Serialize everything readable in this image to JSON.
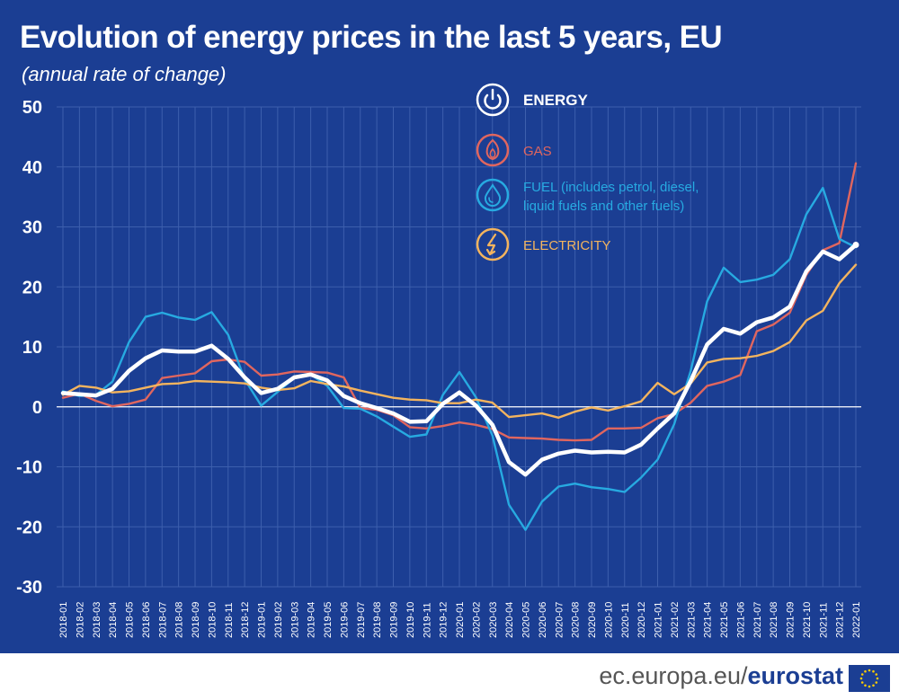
{
  "header": {
    "title": "Evolution of energy prices in the last 5 years, EU",
    "subtitle": "(annual rate of change)"
  },
  "footer": {
    "site_prefix": "ec.europa.eu/",
    "site_brand": "eurostat"
  },
  "colors": {
    "background": "#1b3e93",
    "energy": "#ffffff",
    "gas": "#e0665f",
    "fuel": "#27aae1",
    "electricity": "#f3b45e",
    "grid": "#3d5fad",
    "zero_line": "#ffffff"
  },
  "chart_data": {
    "type": "line",
    "title": "Evolution of energy prices in the last 5 years, EU",
    "subtitle": "(annual rate of change)",
    "xlabel": "",
    "ylabel": "",
    "ylim": [
      -30,
      50
    ],
    "yticks": [
      -30,
      -20,
      -10,
      0,
      10,
      20,
      30,
      40,
      50
    ],
    "grid": true,
    "legend_position": "top-right",
    "x": [
      "2018-01",
      "2018-02",
      "2018-03",
      "2018-04",
      "2018-05",
      "2018-06",
      "2018-07",
      "2018-08",
      "2018-09",
      "2018-10",
      "2018-11",
      "2018-12",
      "2019-01",
      "2019-02",
      "2019-03",
      "2019-04",
      "2019-05",
      "2019-06",
      "2019-07",
      "2019-08",
      "2019-09",
      "2019-10",
      "2019-11",
      "2019-12",
      "2020-01",
      "2020-02",
      "2020-03",
      "2020-04",
      "2020-05",
      "2020-06",
      "2020-07",
      "2020-08",
      "2020-09",
      "2020-10",
      "2020-11",
      "2020-12",
      "2021-01",
      "2021-02",
      "2021-03",
      "2021-04",
      "2021-05",
      "2021-06",
      "2021-07",
      "2021-08",
      "2021-09",
      "2021-10",
      "2021-11",
      "2021-12",
      "2022-01"
    ],
    "series": [
      {
        "name": "GAS",
        "color": "#e0665f",
        "icon": "gas-flame-icon",
        "values": [
          1.5,
          2.2,
          1.0,
          0.1,
          0.5,
          1.2,
          4.8,
          5.2,
          5.6,
          7.6,
          7.9,
          7.5,
          5.2,
          5.4,
          5.9,
          5.8,
          5.7,
          4.9,
          -0.2,
          -0.5,
          -1.4,
          -3.4,
          -3.6,
          -3.2,
          -2.6,
          -3.0,
          -3.7,
          -5.1,
          -5.2,
          -5.3,
          -5.5,
          -5.6,
          -5.5,
          -3.6,
          -3.6,
          -3.5,
          -1.9,
          -1.2,
          0.7,
          3.5,
          4.2,
          5.3,
          12.6,
          13.7,
          15.7,
          22.0,
          26.1,
          27.3,
          40.6
        ]
      },
      {
        "name": "FUEL (includes petrol, diesel, liquid fuels and other fuels)",
        "color": "#27aae1",
        "icon": "fuel-drop-icon",
        "values": [
          2.6,
          1.8,
          2.0,
          4.2,
          10.8,
          15.0,
          15.7,
          14.9,
          14.5,
          15.8,
          12.0,
          4.6,
          0.2,
          2.5,
          4.8,
          5.4,
          3.5,
          -0.2,
          -0.3,
          -1.6,
          -3.3,
          -5.0,
          -4.6,
          2.0,
          5.8,
          1.6,
          -4.8,
          -16.3,
          -20.5,
          -15.8,
          -13.3,
          -12.8,
          -13.4,
          -13.7,
          -14.2,
          -11.8,
          -8.8,
          -2.9,
          6.0,
          17.6,
          23.2,
          20.8,
          21.2,
          22.0,
          24.6,
          32.1,
          36.5,
          28.0,
          26.6
        ]
      },
      {
        "name": "ELECTRICITY",
        "color": "#f3b45e",
        "icon": "electricity-bolt-icon",
        "values": [
          2.0,
          3.5,
          3.2,
          2.4,
          2.6,
          3.2,
          3.8,
          3.9,
          4.3,
          4.2,
          4.1,
          3.9,
          3.2,
          2.8,
          3.1,
          4.3,
          3.8,
          3.4,
          2.7,
          2.1,
          1.5,
          1.2,
          1.1,
          0.6,
          0.6,
          1.2,
          0.7,
          -1.7,
          -1.4,
          -1.1,
          -1.8,
          -0.8,
          -0.1,
          -0.6,
          0.1,
          0.9,
          4.0,
          2.1,
          3.9,
          7.4,
          8.0,
          8.1,
          8.5,
          9.3,
          10.8,
          14.4,
          16.0,
          20.6,
          23.7
        ]
      },
      {
        "name": "ENERGY",
        "color": "#ffffff",
        "icon": "energy-power-icon",
        "values": [
          2.3,
          2.1,
          1.9,
          3.0,
          6.0,
          8.1,
          9.4,
          9.2,
          9.2,
          10.2,
          8.0,
          4.9,
          2.3,
          3.0,
          4.9,
          5.4,
          4.4,
          1.8,
          0.6,
          -0.2,
          -1.1,
          -2.5,
          -2.4,
          0.5,
          2.4,
          0.2,
          -3.0,
          -9.2,
          -11.3,
          -8.8,
          -7.8,
          -7.3,
          -7.6,
          -7.5,
          -7.6,
          -6.3,
          -3.6,
          -1.1,
          4.3,
          10.4,
          13.0,
          12.2,
          14.1,
          14.9,
          16.7,
          22.6,
          25.9,
          24.6,
          27.0
        ]
      }
    ],
    "legend": [
      {
        "label": "ENERGY",
        "color": "#ffffff",
        "icon": "energy-power-icon"
      },
      {
        "label": "GAS",
        "color": "#e0665f",
        "icon": "gas-flame-icon"
      },
      {
        "label_lines": [
          "FUEL (includes petrol, diesel,",
          "liquid fuels and other fuels)"
        ],
        "color": "#27aae1",
        "icon": "fuel-drop-icon"
      },
      {
        "label": "ELECTRICITY",
        "color": "#f3b45e",
        "icon": "electricity-bolt-icon"
      }
    ]
  }
}
